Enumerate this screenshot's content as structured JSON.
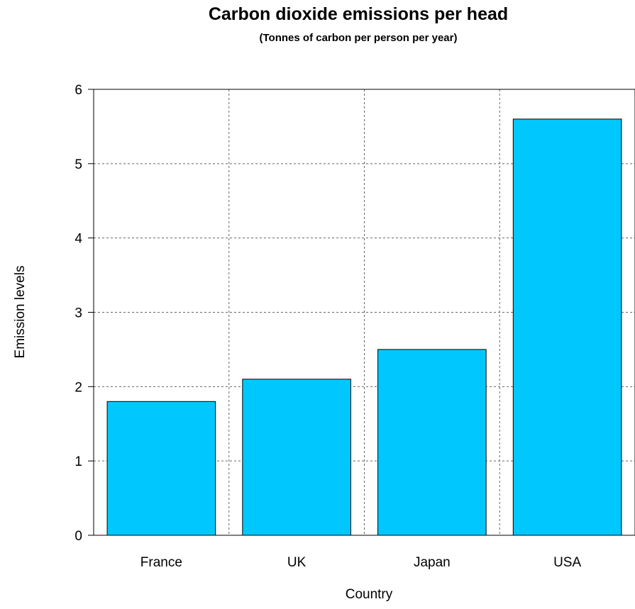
{
  "chart_data": {
    "type": "bar",
    "title": "Carbon dioxide emissions per head",
    "subtitle": "(Tonnes of carbon per person per year)",
    "xlabel": "Country",
    "ylabel": "Emission levels",
    "categories": [
      "France",
      "UK",
      "Japan",
      "USA"
    ],
    "values": [
      1.8,
      2.1,
      2.5,
      5.6
    ],
    "ylim": [
      0,
      6
    ],
    "yticks": [
      0,
      1,
      2,
      3,
      4,
      5,
      6
    ],
    "grid": true,
    "legend": "none",
    "bar_color": "#00c8ff"
  }
}
